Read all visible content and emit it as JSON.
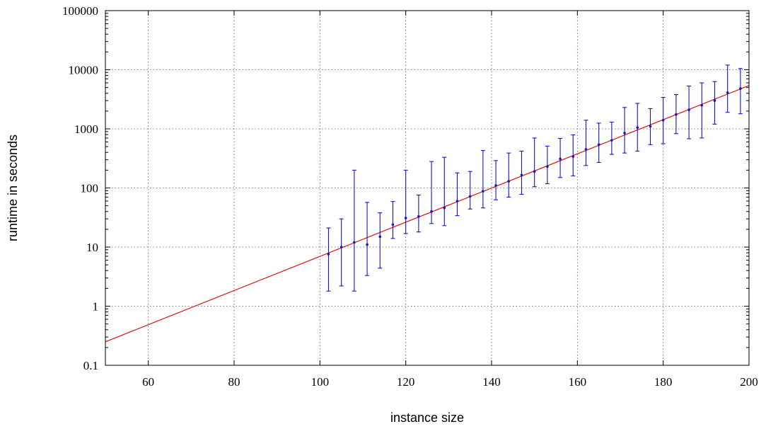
{
  "chart_data": {
    "type": "scatter",
    "xlabel": "instance size",
    "ylabel": "runtime in seconds",
    "xlim": [
      50,
      200
    ],
    "ylim": [
      0.1,
      100000
    ],
    "yscale": "log",
    "grid": true,
    "x_ticks": [
      60,
      80,
      100,
      120,
      140,
      160,
      180,
      200
    ],
    "x_tick_labels": [
      "60",
      "80",
      "100",
      "120",
      "140",
      "160",
      "180",
      "200"
    ],
    "y_ticks": [
      0.1,
      1,
      10,
      100,
      1000,
      10000,
      100000
    ],
    "y_tick_labels": [
      "0.1",
      "1",
      "10",
      "100",
      "1000",
      "10000",
      "100000"
    ],
    "series": [
      {
        "kind": "errorbars",
        "color": "#1414c8",
        "points": [
          {
            "x": 102,
            "y": 7.6,
            "low": 1.8,
            "high": 21
          },
          {
            "x": 105,
            "y": 10,
            "low": 2.2,
            "high": 30
          },
          {
            "x": 108,
            "y": 12,
            "low": 1.8,
            "high": 200
          },
          {
            "x": 111,
            "y": 11,
            "low": 3.3,
            "high": 57
          },
          {
            "x": 114,
            "y": 15,
            "low": 4.4,
            "high": 38
          },
          {
            "x": 117,
            "y": 24,
            "low": 14,
            "high": 59
          },
          {
            "x": 120,
            "y": 31,
            "low": 17,
            "high": 200
          },
          {
            "x": 123,
            "y": 33,
            "low": 18,
            "high": 76
          },
          {
            "x": 126,
            "y": 40,
            "low": 25,
            "high": 280
          },
          {
            "x": 129,
            "y": 46,
            "low": 23,
            "high": 330
          },
          {
            "x": 132,
            "y": 60,
            "low": 34,
            "high": 180
          },
          {
            "x": 135,
            "y": 72,
            "low": 44,
            "high": 190
          },
          {
            "x": 138,
            "y": 88,
            "low": 46,
            "high": 430
          },
          {
            "x": 141,
            "y": 110,
            "low": 63,
            "high": 290
          },
          {
            "x": 144,
            "y": 130,
            "low": 70,
            "high": 390
          },
          {
            "x": 147,
            "y": 165,
            "low": 78,
            "high": 420
          },
          {
            "x": 150,
            "y": 190,
            "low": 105,
            "high": 700
          },
          {
            "x": 153,
            "y": 230,
            "low": 118,
            "high": 510
          },
          {
            "x": 156,
            "y": 310,
            "low": 150,
            "high": 690
          },
          {
            "x": 159,
            "y": 340,
            "low": 160,
            "high": 790
          },
          {
            "x": 162,
            "y": 450,
            "low": 240,
            "high": 1400
          },
          {
            "x": 165,
            "y": 540,
            "low": 270,
            "high": 1250
          },
          {
            "x": 168,
            "y": 640,
            "low": 370,
            "high": 1300
          },
          {
            "x": 171,
            "y": 850,
            "low": 390,
            "high": 2300
          },
          {
            "x": 174,
            "y": 1050,
            "low": 420,
            "high": 2700
          },
          {
            "x": 177,
            "y": 1100,
            "low": 540,
            "high": 2200
          },
          {
            "x": 180,
            "y": 1400,
            "low": 560,
            "high": 3400
          },
          {
            "x": 183,
            "y": 1750,
            "low": 830,
            "high": 3800
          },
          {
            "x": 186,
            "y": 2100,
            "low": 680,
            "high": 5300
          },
          {
            "x": 189,
            "y": 2500,
            "low": 700,
            "high": 6000
          },
          {
            "x": 192,
            "y": 3000,
            "low": 1200,
            "high": 6300
          },
          {
            "x": 195,
            "y": 4100,
            "low": 1900,
            "high": 12000
          },
          {
            "x": 198,
            "y": 4800,
            "low": 1800,
            "high": 10500
          }
        ]
      },
      {
        "kind": "line",
        "color": "#e01010",
        "points": [
          {
            "x": 50,
            "y": 0.25
          },
          {
            "x": 200,
            "y": 5400
          }
        ]
      }
    ]
  }
}
